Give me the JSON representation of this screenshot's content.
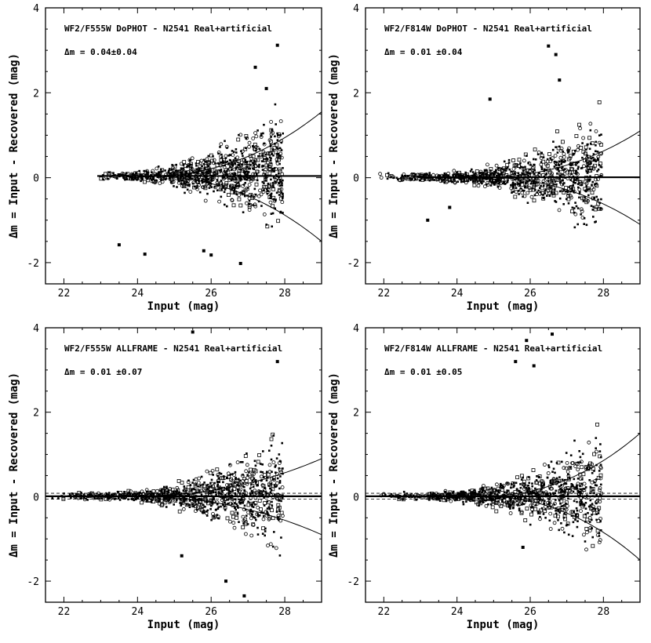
{
  "chart_data": [
    {
      "type": "scatter",
      "title": "WF2/F555W DoPHOT - N2541 Real+artificial",
      "annotation": "Δm = 0.04±0.04",
      "xlabel": "Input (mag)",
      "ylabel": "Δm = Input - Recovered (mag)",
      "xlim": [
        21.5,
        29
      ],
      "ylim": [
        -2.5,
        4
      ],
      "xticks": [
        22,
        24,
        26,
        28
      ],
      "yticks": [
        -2,
        0,
        2,
        4
      ],
      "offset": 0.04,
      "envelope": {
        "upper_at_29": 1.55,
        "lower_at_29": -1.5,
        "start_x": 24.2
      },
      "outliers": [
        {
          "x": 23.5,
          "y": -1.58
        },
        {
          "x": 24.2,
          "y": -1.8
        },
        {
          "x": 25.8,
          "y": -1.72
        },
        {
          "x": 26.0,
          "y": -1.82
        },
        {
          "x": 26.8,
          "y": -2.02
        },
        {
          "x": 27.8,
          "y": 3.12
        },
        {
          "x": 27.2,
          "y": 2.6
        },
        {
          "x": 27.5,
          "y": 2.1
        }
      ],
      "point_seed": 11
    },
    {
      "type": "scatter",
      "title": "WF2/F814W DoPHOT - N2541 Real+artificial",
      "annotation": "Δm = 0.01 ±0.04",
      "xlabel": "Input (mag)",
      "ylabel": "Δm = Input - Recovered (mag)",
      "xlim": [
        21.5,
        29
      ],
      "ylim": [
        -2.5,
        4
      ],
      "xticks": [
        22,
        24,
        26,
        28
      ],
      "yticks": [
        -2,
        0,
        2,
        4
      ],
      "offset": 0.01,
      "envelope": {
        "upper_at_29": 1.1,
        "lower_at_29": -1.1,
        "start_x": 24.6
      },
      "outliers": [
        {
          "x": 23.2,
          "y": -1.0
        },
        {
          "x": 23.8,
          "y": -0.7
        },
        {
          "x": 24.9,
          "y": 1.85
        },
        {
          "x": 26.5,
          "y": 3.1
        },
        {
          "x": 26.7,
          "y": 2.9
        },
        {
          "x": 26.8,
          "y": 2.3
        }
      ],
      "point_seed": 23
    },
    {
      "type": "scatter",
      "title": "WF2/F555W ALLFRAME - N2541 Real+artificial",
      "annotation": "Δm = 0.01 ±0.07",
      "xlabel": "Input (mag)",
      "ylabel": "Δm = Input - Recovered (mag)",
      "xlim": [
        21.5,
        29
      ],
      "ylim": [
        -2.5,
        4
      ],
      "xticks": [
        22,
        24,
        26,
        28
      ],
      "yticks": [
        -2,
        0,
        2,
        4
      ],
      "offset": 0.01,
      "envelope": {
        "upper_at_29": 0.9,
        "lower_at_29": -0.9,
        "start_x": 23.8
      },
      "outliers": [
        {
          "x": 25.5,
          "y": 3.9
        },
        {
          "x": 26.4,
          "y": -2.0
        },
        {
          "x": 26.9,
          "y": -2.35
        },
        {
          "x": 27.8,
          "y": 3.2
        },
        {
          "x": 25.2,
          "y": -1.4
        }
      ],
      "point_seed": 37
    },
    {
      "type": "scatter",
      "title": "WF2/F814W ALLFRAME - N2541 Real+artificial",
      "annotation": "Δm = 0.01 ±0.05",
      "xlabel": "Input (mag)",
      "ylabel": "Δm = Input - Recovered (mag)",
      "xlim": [
        21.5,
        29
      ],
      "ylim": [
        -2.5,
        4
      ],
      "xticks": [
        22,
        24,
        26,
        28
      ],
      "yticks": [
        -2,
        0,
        2,
        4
      ],
      "offset": 0.01,
      "envelope": {
        "upper_at_29": 1.5,
        "lower_at_29": -1.5,
        "start_x": 24.6
      },
      "outliers": [
        {
          "x": 25.9,
          "y": 3.7
        },
        {
          "x": 26.6,
          "y": 3.85
        },
        {
          "x": 25.6,
          "y": 3.2
        },
        {
          "x": 26.1,
          "y": 3.1
        },
        {
          "x": 25.8,
          "y": -1.2
        }
      ],
      "point_seed": 53
    }
  ]
}
